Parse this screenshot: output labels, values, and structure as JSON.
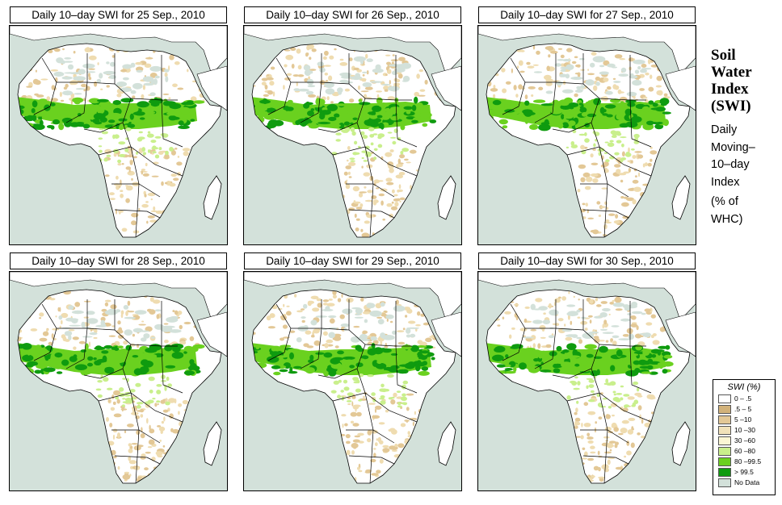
{
  "panels": [
    {
      "title": "Daily 10–day SWI for  25 Sep., 2010"
    },
    {
      "title": "Daily 10–day SWI for  26 Sep., 2010"
    },
    {
      "title": "Daily 10–day SWI for  27 Sep., 2010"
    },
    {
      "title": "Daily 10–day SWI for  28 Sep., 2010"
    },
    {
      "title": "Daily 10–day SWI for  29 Sep., 2010"
    },
    {
      "title": "Daily 10–day SWI for  30 Sep., 2010"
    }
  ],
  "side": {
    "title_lines": [
      "Soil",
      "Water",
      "Index",
      "(SWI)"
    ],
    "desc_lines": [
      "Daily",
      "Moving–",
      "10–day",
      "Index"
    ],
    "unit_lines": [
      "(% of",
      " WHC)"
    ]
  },
  "legend": {
    "title": "SWI (%)",
    "items": [
      {
        "label": "0 – .5",
        "color": "#ffffff"
      },
      {
        "label": ".5 – 5",
        "color": "#d2b27a"
      },
      {
        "label": "5 –10",
        "color": "#e3c896"
      },
      {
        "label": "10 –30",
        "color": "#f1e2ba"
      },
      {
        "label": "30 –60",
        "color": "#fbf6d4"
      },
      {
        "label": "60 –80",
        "color": "#c9ef8c"
      },
      {
        "label": "80 –99.5",
        "color": "#6ad11f"
      },
      {
        "label": "> 99.5",
        "color": "#0f9b0f"
      },
      {
        "label": "No Data",
        "color": "#d3e1da"
      }
    ]
  },
  "colors": {
    "ocean": "#d3e1da",
    "land": "#ffffff",
    "dry": "#e3c896",
    "wet": "#6ad11f",
    "saturated": "#0f9b0f"
  }
}
